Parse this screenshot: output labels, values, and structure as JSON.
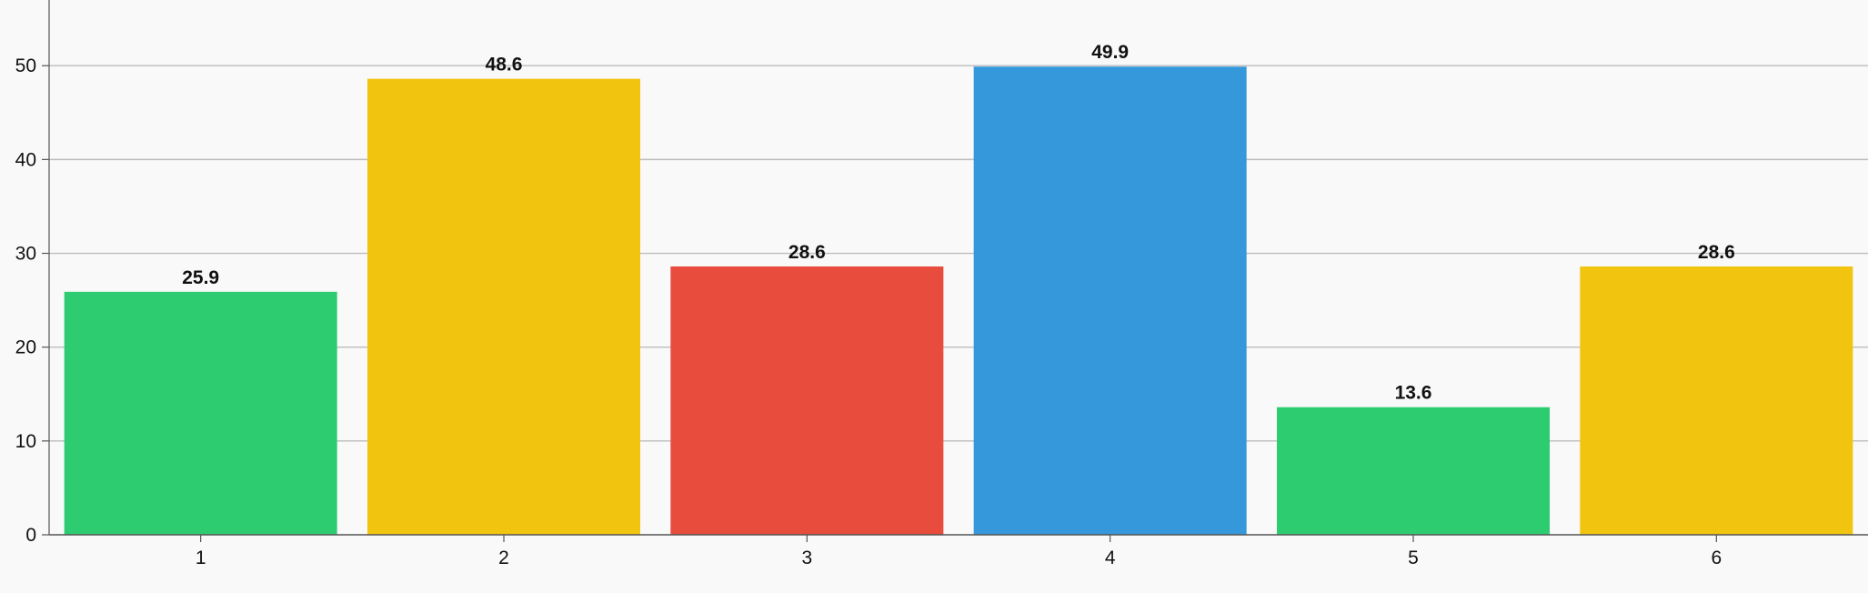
{
  "chart_data": {
    "type": "bar",
    "categories": [
      "1",
      "2",
      "3",
      "4",
      "5",
      "6"
    ],
    "values": [
      25.9,
      48.6,
      28.6,
      49.9,
      13.6,
      28.6
    ],
    "data_labels": [
      "25.9",
      "48.6",
      "28.6",
      "49.9",
      "13.6",
      "28.6"
    ],
    "bar_colors": [
      "#2ecc71",
      "#f1c40f",
      "#e74c3c",
      "#3498db",
      "#2ecc71",
      "#f1c40f"
    ],
    "y_ticks": [
      0,
      10,
      20,
      30,
      40,
      50
    ],
    "y_tick_labels": [
      "0",
      "10",
      "20",
      "30",
      "40",
      "50"
    ],
    "ylim": [
      0,
      57
    ],
    "grid": true,
    "title": "",
    "xlabel": "",
    "ylabel": ""
  }
}
